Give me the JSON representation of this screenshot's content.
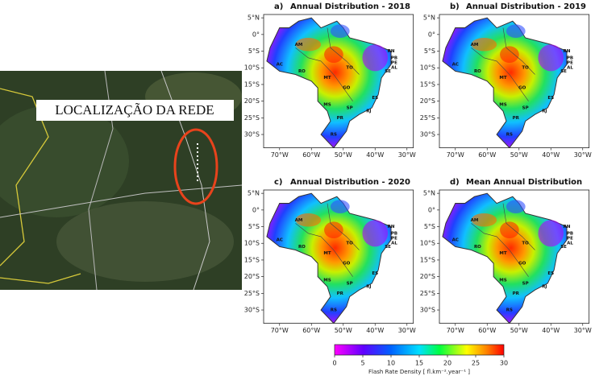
{
  "location_image": {
    "label": "LOCALIZAÇÃO DA REDE"
  },
  "panels": [
    {
      "letter": "a)",
      "title": "Annual Distribution - 2018"
    },
    {
      "letter": "b)",
      "title": "Annual Distribution - 2019"
    },
    {
      "letter": "c)",
      "title": "Annual Distribution - 2020"
    },
    {
      "letter": "d)",
      "title": "Mean Annual Distribution"
    }
  ],
  "lat_labels": [
    "5°N",
    "0°",
    "5°S",
    "10°S",
    "15°S",
    "20°S",
    "25°S",
    "30°S"
  ],
  "lon_labels": [
    "70°W",
    "60°W",
    "50°W",
    "40°W",
    "30°W"
  ],
  "state_labels": [
    "AM",
    "AC",
    "RO",
    "MT",
    "TO",
    "GO",
    "MS",
    "SP",
    "PR",
    "RS",
    "ES",
    "RJ",
    "RN",
    "PB",
    "PE",
    "AL",
    "SE"
  ],
  "colorbar": {
    "ticks": [
      0,
      5,
      10,
      15,
      20,
      25,
      30
    ],
    "label": "Flash Rate Density [ fl.km⁻².year⁻¹ ]"
  }
}
